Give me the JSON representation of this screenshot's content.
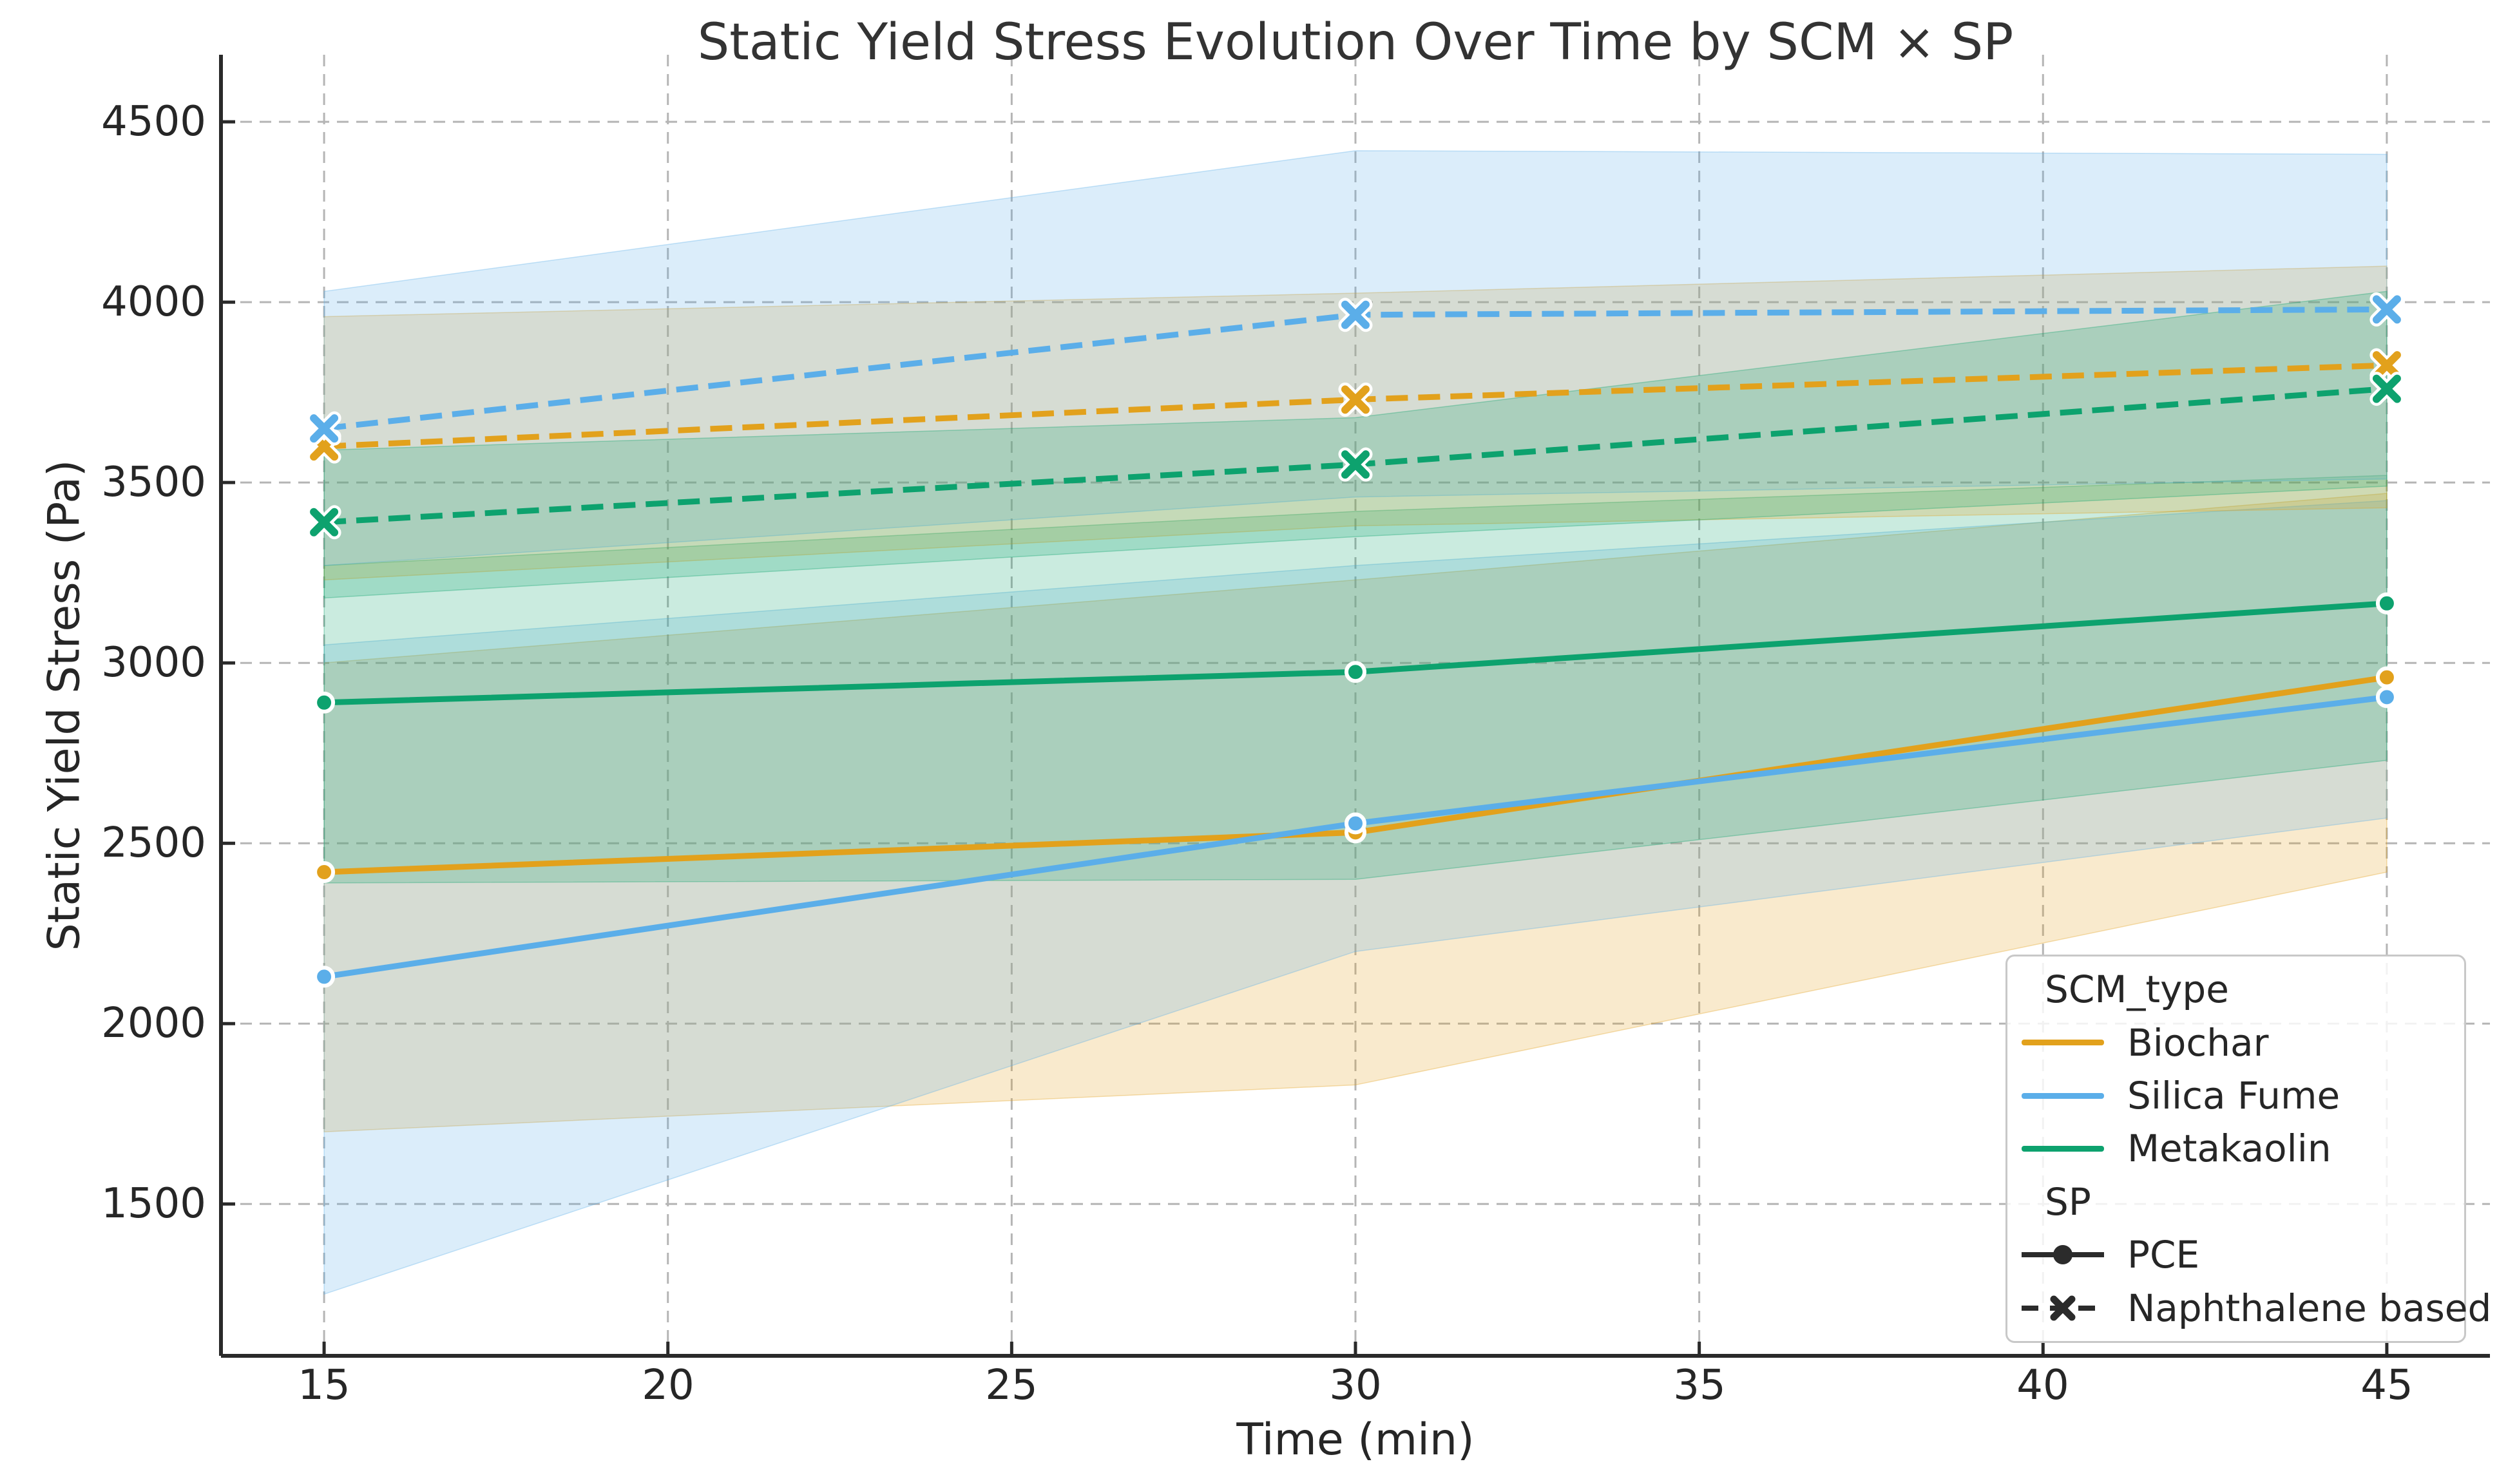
{
  "title": "Static Yield Stress Evolution Over Time by SCM × SP",
  "chart_data": {
    "type": "line",
    "title": "Static Yield Stress Evolution Over Time by SCM × SP",
    "xlabel": "Time (min)",
    "ylabel": "Static Yield Stress (Pa)",
    "x": [
      15,
      30,
      45
    ],
    "xticks": [
      15,
      20,
      25,
      30,
      35,
      40,
      45
    ],
    "yticks": [
      1500,
      2000,
      2500,
      3000,
      3500,
      4000,
      4500
    ],
    "xtick_labels": [
      "15",
      "20",
      "25",
      "30",
      "35",
      "40",
      "45"
    ],
    "ytick_labels": [
      "1500",
      "2000",
      "2500",
      "3000",
      "3500",
      "4000",
      "4500"
    ],
    "xlim": [
      13.5,
      46.5
    ],
    "ylim": [
      1079,
      4686
    ],
    "grid": true,
    "grid_color": "#b5b5b5",
    "band_opacity": 0.22,
    "legend_position": "lower right",
    "series": [
      {
        "name": "Biochar PCE",
        "scm": "Biochar",
        "sp": "PCE",
        "color": "#E2A11C",
        "style": "solid",
        "marker": "circle",
        "values": [
          2420,
          2530,
          2960
        ],
        "band_lo": [
          1700,
          1830,
          2420
        ],
        "band_hi": [
          3000,
          3230,
          3470
        ]
      },
      {
        "name": "Silica Fume PCE",
        "scm": "Silica Fume",
        "sp": "PCE",
        "color": "#5BAEE9",
        "style": "solid",
        "marker": "circle",
        "values": [
          2130,
          2555,
          2905
        ],
        "band_lo": [
          1250,
          2200,
          2570
        ],
        "band_hi": [
          3050,
          3270,
          3450
        ]
      },
      {
        "name": "Metakaolin PCE",
        "scm": "Metakaolin",
        "sp": "PCE",
        "color": "#0DA26E",
        "style": "solid",
        "marker": "circle",
        "values": [
          2890,
          2975,
          3165
        ],
        "band_lo": [
          2390,
          2400,
          2730
        ],
        "band_hi": [
          3270,
          3420,
          3520
        ]
      },
      {
        "name": "Biochar Naphthalene based",
        "scm": "Biochar",
        "sp": "Naphthalene based",
        "color": "#E2A11C",
        "style": "dashed",
        "marker": "x",
        "values": [
          3600,
          3730,
          3825
        ],
        "band_lo": [
          3230,
          3380,
          3430
        ],
        "band_hi": [
          3960,
          4025,
          4100
        ]
      },
      {
        "name": "Silica Fume Naphthalene based",
        "scm": "Silica Fume",
        "sp": "Naphthalene based",
        "color": "#5BAEE9",
        "style": "dashed",
        "marker": "x",
        "values": [
          3650,
          3965,
          3980
        ],
        "band_lo": [
          3270,
          3460,
          3510
        ],
        "band_hi": [
          4030,
          4420,
          4410
        ]
      },
      {
        "name": "Metakaolin Naphthalene based",
        "scm": "Metakaolin",
        "sp": "Naphthalene based",
        "color": "#0DA26E",
        "style": "dashed",
        "marker": "x",
        "values": [
          3390,
          3550,
          3760
        ],
        "band_lo": [
          3180,
          3350,
          3490
        ],
        "band_hi": [
          3590,
          3680,
          4030
        ]
      }
    ]
  },
  "legend": {
    "scm_title": "SCM_type",
    "scm_items": [
      {
        "label": "Biochar",
        "color": "#E2A11C"
      },
      {
        "label": "Silica Fume",
        "color": "#5BAEE9"
      },
      {
        "label": "Metakaolin",
        "color": "#0DA26E"
      }
    ],
    "sp_title": "SP",
    "sp_items": [
      {
        "label": "PCE",
        "style": "solid",
        "marker": "circle"
      },
      {
        "label": "Naphthalene based",
        "style": "dashed",
        "marker": "x"
      }
    ]
  }
}
